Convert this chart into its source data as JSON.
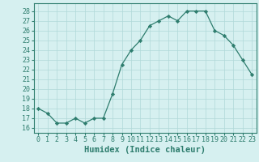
{
  "x": [
    0,
    1,
    2,
    3,
    4,
    5,
    6,
    7,
    8,
    9,
    10,
    11,
    12,
    13,
    14,
    15,
    16,
    17,
    18,
    19,
    20,
    21,
    22,
    23
  ],
  "y": [
    18.0,
    17.5,
    16.5,
    16.5,
    17.0,
    16.5,
    17.0,
    17.0,
    19.5,
    22.5,
    24.0,
    25.0,
    26.5,
    27.0,
    27.5,
    27.0,
    28.0,
    28.0,
    28.0,
    26.0,
    25.5,
    24.5,
    23.0,
    21.5
  ],
  "line_color": "#2e7d6e",
  "marker": "D",
  "marker_size": 2.2,
  "bg_color": "#d6f0f0",
  "grid_color": "#b0d8d8",
  "xlabel": "Humidex (Indice chaleur)",
  "ylabel": "",
  "ylim": [
    15.5,
    28.8
  ],
  "xlim": [
    -0.5,
    23.5
  ],
  "yticks": [
    16,
    17,
    18,
    19,
    20,
    21,
    22,
    23,
    24,
    25,
    26,
    27,
    28
  ],
  "xticks": [
    0,
    1,
    2,
    3,
    4,
    5,
    6,
    7,
    8,
    9,
    10,
    11,
    12,
    13,
    14,
    15,
    16,
    17,
    18,
    19,
    20,
    21,
    22,
    23
  ],
  "tick_label_size": 6.0,
  "xlabel_size": 7.5
}
